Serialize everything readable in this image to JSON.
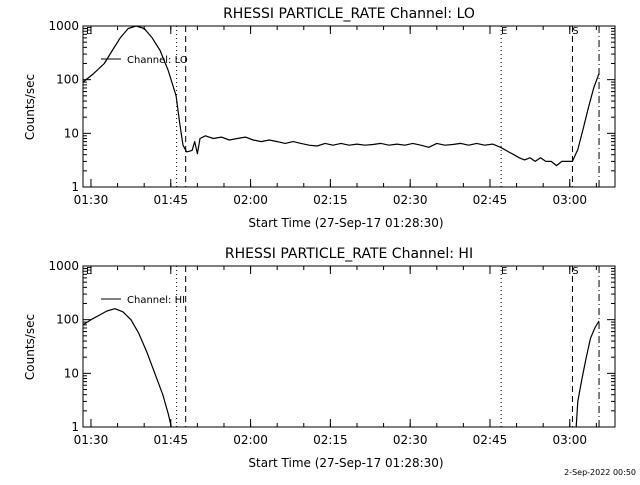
{
  "stamp": "2-Sep-2022 00:50",
  "chart_data": [
    {
      "type": "line",
      "title": "RHESSI PARTICLE_RATE Channel: LO",
      "ylabel": "Counts/sec",
      "xlabel": "Start Time (27-Sep-17 01:28:30)",
      "x_unit": "minutes after 01:28:30",
      "xlim": [
        0,
        100
      ],
      "ylim": [
        1,
        1000
      ],
      "yscale": "log",
      "xticks": [
        {
          "x": 1.5,
          "label": "01:30"
        },
        {
          "x": 16.5,
          "label": "01:45"
        },
        {
          "x": 31.5,
          "label": "02:00"
        },
        {
          "x": 46.5,
          "label": "02:15"
        },
        {
          "x": 61.5,
          "label": "02:30"
        },
        {
          "x": 76.5,
          "label": "02:45"
        },
        {
          "x": 91.5,
          "label": "03:00"
        }
      ],
      "yticks": [
        {
          "y": 1,
          "label": "1"
        },
        {
          "y": 10,
          "label": "10"
        },
        {
          "y": 100,
          "label": "100"
        },
        {
          "y": 1000,
          "label": "1000"
        }
      ],
      "legend": {
        "label": "Channel: LO",
        "placement": "top-left"
      },
      "markers": [
        {
          "x": 0.6,
          "style": "none",
          "label": "E"
        },
        {
          "x": 17.6,
          "style": "dotted",
          "label": ""
        },
        {
          "x": 19.3,
          "style": "dashed",
          "label": ""
        },
        {
          "x": 78.6,
          "style": "dotted",
          "label": "E"
        },
        {
          "x": 92.0,
          "style": "dashed",
          "label": "S"
        },
        {
          "x": 97.0,
          "style": "dashdot",
          "label": ""
        }
      ],
      "series": [
        {
          "points": [
            [
              0,
              90
            ],
            [
              2,
              130
            ],
            [
              4,
              200
            ],
            [
              5.5,
              350
            ],
            [
              7,
              600
            ],
            [
              8.5,
              900
            ],
            [
              10,
              1000
            ],
            [
              11.5,
              900
            ],
            [
              13,
              600
            ],
            [
              14.5,
              350
            ],
            [
              16,
              150
            ],
            [
              17.5,
              50
            ],
            [
              18.2,
              15
            ],
            [
              18.8,
              6
            ],
            [
              19.5,
              4.5
            ],
            [
              20.5,
              4.8
            ],
            [
              21,
              7
            ],
            [
              21.5,
              4.2
            ],
            [
              22,
              8
            ],
            [
              23,
              9
            ],
            [
              24.5,
              8
            ],
            [
              26,
              8.5
            ],
            [
              27.5,
              7.5
            ],
            [
              29,
              8
            ],
            [
              30.5,
              8.5
            ],
            [
              32,
              7.5
            ],
            [
              33.5,
              7
            ],
            [
              35,
              7.5
            ],
            [
              36.5,
              7
            ],
            [
              38,
              6.5
            ],
            [
              39.5,
              7
            ],
            [
              41,
              6.5
            ],
            [
              42.5,
              6
            ],
            [
              44,
              5.8
            ],
            [
              45.5,
              6.5
            ],
            [
              47,
              6
            ],
            [
              48.5,
              6.5
            ],
            [
              50,
              6
            ],
            [
              51.5,
              6.3
            ],
            [
              53,
              6
            ],
            [
              54.5,
              6.2
            ],
            [
              56,
              6.5
            ],
            [
              57.5,
              6
            ],
            [
              59,
              6.3
            ],
            [
              60.5,
              6
            ],
            [
              62,
              6.5
            ],
            [
              63.5,
              6
            ],
            [
              65,
              5.5
            ],
            [
              66.5,
              6.5
            ],
            [
              68,
              6
            ],
            [
              69.5,
              6.2
            ],
            [
              71,
              6.5
            ],
            [
              72.5,
              6
            ],
            [
              74,
              6.5
            ],
            [
              75.5,
              6
            ],
            [
              77,
              6.3
            ],
            [
              78.5,
              5.5
            ],
            [
              80,
              4.5
            ],
            [
              81,
              4
            ],
            [
              82,
              3.5
            ],
            [
              83,
              3.2
            ],
            [
              84,
              3.5
            ],
            [
              85,
              3
            ],
            [
              86,
              3.5
            ],
            [
              87,
              3
            ],
            [
              88,
              3
            ],
            [
              89,
              2.5
            ],
            [
              90,
              3
            ],
            [
              91,
              3
            ],
            [
              92,
              3
            ],
            [
              93,
              5
            ],
            [
              94,
              12
            ],
            [
              95,
              30
            ],
            [
              96,
              70
            ],
            [
              97,
              130
            ]
          ]
        }
      ]
    },
    {
      "type": "line",
      "title": "RHESSI PARTICLE_RATE Channel: HI",
      "ylabel": "Counts/sec",
      "xlabel": "Start Time (27-Sep-17 01:28:30)",
      "x_unit": "minutes after 01:28:30",
      "xlim": [
        0,
        100
      ],
      "ylim": [
        1,
        1000
      ],
      "yscale": "log",
      "xticks": [
        {
          "x": 1.5,
          "label": "01:30"
        },
        {
          "x": 16.5,
          "label": "01:45"
        },
        {
          "x": 31.5,
          "label": "02:00"
        },
        {
          "x": 46.5,
          "label": "02:15"
        },
        {
          "x": 61.5,
          "label": "02:30"
        },
        {
          "x": 76.5,
          "label": "02:45"
        },
        {
          "x": 91.5,
          "label": "03:00"
        }
      ],
      "yticks": [
        {
          "y": 1,
          "label": "1"
        },
        {
          "y": 10,
          "label": "10"
        },
        {
          "y": 100,
          "label": "100"
        },
        {
          "y": 1000,
          "label": "1000"
        }
      ],
      "legend": {
        "label": "Channel: HI",
        "placement": "top-left"
      },
      "markers": [
        {
          "x": 0.6,
          "style": "none",
          "label": "E"
        },
        {
          "x": 17.6,
          "style": "dotted",
          "label": ""
        },
        {
          "x": 19.3,
          "style": "dashed",
          "label": ""
        },
        {
          "x": 78.6,
          "style": "dotted",
          "label": "E"
        },
        {
          "x": 92.0,
          "style": "dashed",
          "label": "S"
        },
        {
          "x": 97.0,
          "style": "dashdot",
          "label": ""
        }
      ],
      "series": [
        {
          "points": [
            [
              0,
              80
            ],
            [
              1.5,
              100
            ],
            [
              3,
              120
            ],
            [
              4.5,
              145
            ],
            [
              6,
              160
            ],
            [
              7.5,
              140
            ],
            [
              9,
              100
            ],
            [
              10.5,
              55
            ],
            [
              12,
              25
            ],
            [
              13.5,
              10
            ],
            [
              15,
              4
            ],
            [
              16,
              1.8
            ],
            [
              16.6,
              1
            ]
          ]
        },
        {
          "points": [
            [
              92.7,
              1
            ],
            [
              93,
              3
            ],
            [
              93.8,
              8
            ],
            [
              94.6,
              20
            ],
            [
              95.4,
              45
            ],
            [
              96.2,
              70
            ],
            [
              97,
              95
            ]
          ]
        }
      ]
    }
  ]
}
